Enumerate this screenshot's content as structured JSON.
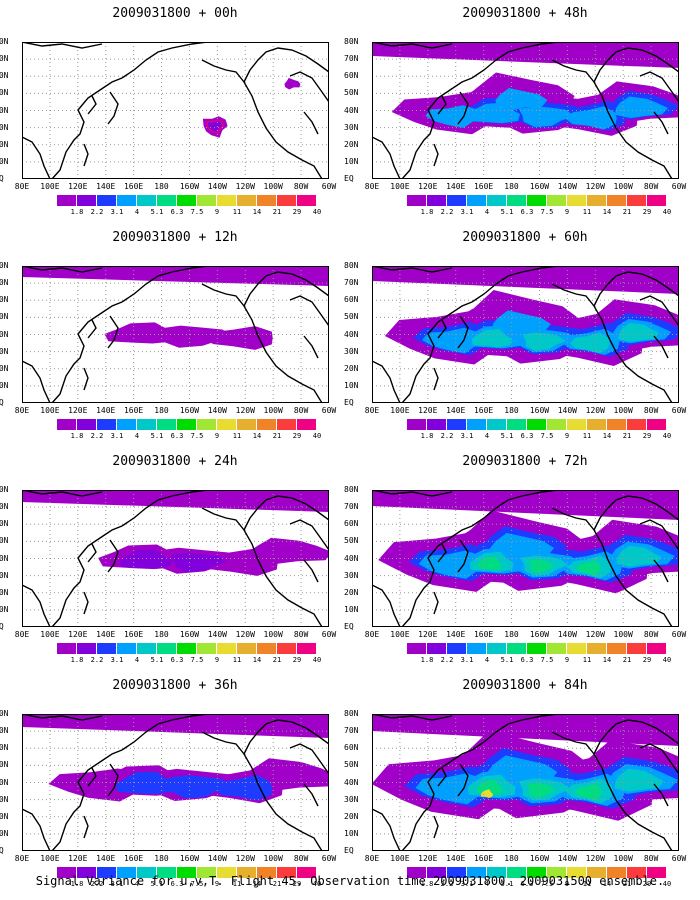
{
  "footer": "Signal Variance for u,v,T. Flight 45. Observation time 2009031800. 2009031500 ensemble.",
  "lat_labels": [
    "80N",
    "70N",
    "60N",
    "50N",
    "40N",
    "30N",
    "20N",
    "10N",
    "EQ"
  ],
  "lon_labels": [
    "80E",
    "100E",
    "120E",
    "140E",
    "160E",
    "180",
    "160W",
    "140W",
    "120W",
    "100W",
    "80W",
    "60W"
  ],
  "colorbar": {
    "labels": [
      "1.8",
      "2.2",
      "3.1",
      "4",
      "5.1",
      "6.3",
      "7.5",
      "9",
      "11",
      "14",
      "21",
      "29",
      "40"
    ],
    "colors": [
      "#a000c8",
      "#8200dc",
      "#1e3cff",
      "#00a0ff",
      "#00c8c8",
      "#00dc82",
      "#00dc00",
      "#a0e632",
      "#e6dc32",
      "#e6af2d",
      "#f08228",
      "#fa3c3c",
      "#f00082"
    ]
  },
  "panels": [
    {
      "title": "2009031800 + 00h",
      "intensity": 0
    },
    {
      "title": "2009031800 + 12h",
      "intensity": 1
    },
    {
      "title": "2009031800 + 24h",
      "intensity": 2
    },
    {
      "title": "2009031800 + 36h",
      "intensity": 3
    },
    {
      "title": "2009031800 + 48h",
      "intensity": 4
    },
    {
      "title": "2009031800 + 60h",
      "intensity": 5
    },
    {
      "title": "2009031800 + 72h",
      "intensity": 6
    },
    {
      "title": "2009031800 + 84h",
      "intensity": 7
    }
  ]
}
